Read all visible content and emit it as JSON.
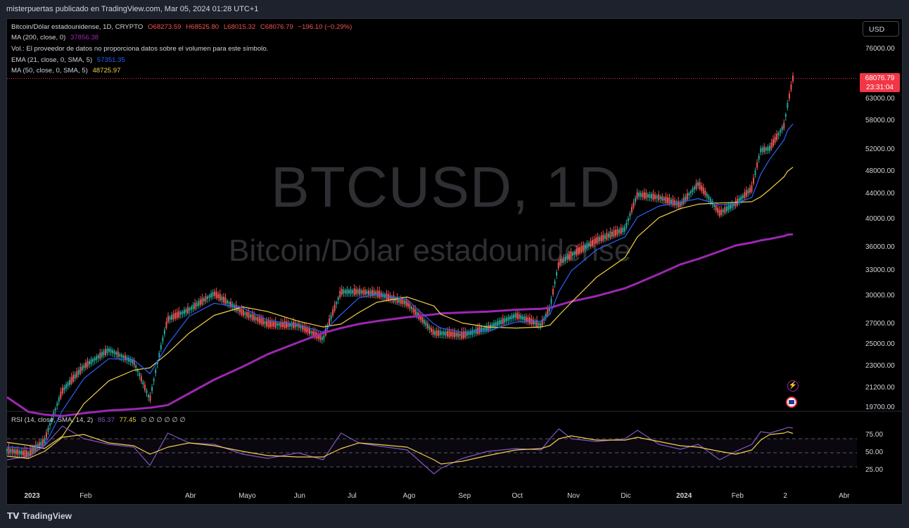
{
  "header": {
    "published": "misterpuertas publicado en TradingView.com, Mar 05, 2024 01:28 UTC+1"
  },
  "legend": {
    "symbol_line": "Bitcoin/Dólar estadounidense, 1D, CRYPTO",
    "open": "O68273.59",
    "high": "H68525.80",
    "low": "L68015.32",
    "close": "C68076.79",
    "change": "−196.10 (−0.29%)",
    "ma200_label": "MA (200, close, 0)",
    "ma200_value": "37856.38",
    "vol_note": "Vol.: El proveedor de datos no proporciona datos sobre el volumen para este símbolo.",
    "ema21_label": "EMA (21, close, 0, SMA, 5)",
    "ema21_value": "57351.35",
    "ma50_label": "MA (50, close, 0, SMA, 5)",
    "ma50_value": "48725.97",
    "rsi_label": "RSI (14, close, SMA, 14, 2)",
    "rsi_value": "85.37",
    "rsi_ma_value": "77.45",
    "rsi_extra": "∅ ∅ ∅ ∅ ∅ ∅"
  },
  "watermark": {
    "ticker": "BTCUSD, 1D",
    "name": "Bitcoin/Dólar estadounidense"
  },
  "currency_button": "USD",
  "last_price": {
    "price": "68076.79",
    "countdown": "23:31:04"
  },
  "footer": {
    "logo": "TradingView"
  },
  "colors": {
    "up": "#26a69a",
    "down": "#ef5350",
    "ma200": "#9c27b0",
    "ema21": "#2962ff",
    "ma50": "#f2d04a",
    "rsi": "#7e57c2",
    "rsi_ma": "#f2d04a",
    "tag": "#f23645"
  },
  "chart_data": {
    "type": "line",
    "title": "BTCUSD, 1D",
    "log_scale": true,
    "y_ticks": [
      "76000.00",
      "63000.00",
      "58000.00",
      "52000.00",
      "48000.00",
      "44000.00",
      "40000.00",
      "36000.00",
      "33000.00",
      "30000.00",
      "27000.00",
      "25000.00",
      "23000.00",
      "21200.00",
      "19700.00"
    ],
    "x_ticks": [
      "2023",
      "Feb",
      "Abr",
      "Mayo",
      "Jun",
      "Jul",
      "Ago",
      "Sep",
      "Oct",
      "Nov",
      "Dic",
      "2024",
      "Feb",
      "2",
      "Abr"
    ],
    "rsi_ticks": [
      "75.00",
      "50.00",
      "25.00"
    ],
    "x": [
      "2022-12-20",
      "2023-01-01",
      "2023-01-10",
      "2023-01-20",
      "2023-02-01",
      "2023-02-15",
      "2023-03-01",
      "2023-03-10",
      "2023-03-20",
      "2023-04-01",
      "2023-04-15",
      "2023-05-01",
      "2023-05-15",
      "2023-06-01",
      "2023-06-15",
      "2023-06-25",
      "2023-07-05",
      "2023-07-15",
      "2023-08-01",
      "2023-08-16",
      "2023-08-20",
      "2023-09-01",
      "2023-09-15",
      "2023-10-01",
      "2023-10-15",
      "2023-10-20",
      "2023-10-25",
      "2023-11-01",
      "2023-11-15",
      "2023-12-01",
      "2023-12-08",
      "2023-12-20",
      "2024-01-01",
      "2024-01-11",
      "2024-01-23",
      "2024-02-01",
      "2024-02-10",
      "2024-02-15",
      "2024-02-20",
      "2024-02-28",
      "2024-03-01",
      "2024-03-04"
    ],
    "series": [
      {
        "name": "BTCUSD",
        "values": [
          16800,
          16550,
          17400,
          21000,
          23000,
          24500,
          23400,
          20300,
          27500,
          28500,
          30300,
          28200,
          27000,
          26900,
          25500,
          30500,
          30500,
          30300,
          29200,
          26100,
          26100,
          25900,
          26600,
          27900,
          26900,
          28700,
          34000,
          35000,
          37000,
          38600,
          44000,
          43500,
          42300,
          45800,
          41000,
          42500,
          45000,
          52000,
          52300,
          57000,
          61500,
          68076.79
        ]
      },
      {
        "name": "MA (200, close, 0)",
        "values": [
          20500,
          19400,
          19200,
          19100,
          19300,
          19500,
          19600,
          19700,
          19900,
          20800,
          21900,
          23000,
          24100,
          25200,
          26100,
          26600,
          27000,
          27300,
          27700,
          28000,
          28100,
          28200,
          28300,
          28500,
          28600,
          28700,
          29000,
          29400,
          30000,
          30900,
          31500,
          32600,
          33800,
          34500,
          35500,
          36300,
          36700,
          37000,
          37200,
          37600,
          37800,
          37856.38
        ]
      },
      {
        "name": "EMA (21, close, 0, SMA, 5)",
        "values": [
          17000,
          16900,
          17100,
          19500,
          22000,
          23700,
          23600,
          22400,
          25000,
          27800,
          29200,
          28700,
          27400,
          26900,
          26200,
          28000,
          29800,
          30200,
          29600,
          27000,
          26600,
          26200,
          26300,
          27200,
          27300,
          28000,
          30500,
          33000,
          35700,
          37500,
          40400,
          42100,
          42700,
          43300,
          42300,
          42500,
          43500,
          47500,
          50200,
          54000,
          56000,
          57351.35
        ]
      },
      {
        "name": "MA (50, close, 0, SMA, 5)",
        "values": [
          17300,
          17100,
          16900,
          17700,
          20000,
          21800,
          22700,
          22900,
          24200,
          26100,
          27900,
          28800,
          28300,
          27300,
          26700,
          27000,
          28200,
          29300,
          29900,
          28900,
          28000,
          27100,
          26700,
          26600,
          26700,
          26900,
          27900,
          29300,
          32200,
          34700,
          37500,
          40300,
          41700,
          42400,
          42600,
          42700,
          42800,
          43600,
          44800,
          47000,
          48000,
          48725.97
        ]
      },
      {
        "name": "RSI (14, close, SMA, 14, 2)",
        "values": [
          40,
          45,
          60,
          88,
          70,
          62,
          58,
          32,
          78,
          64,
          62,
          48,
          42,
          50,
          40,
          78,
          64,
          60,
          54,
          20,
          28,
          42,
          52,
          56,
          54,
          70,
          84,
          70,
          66,
          70,
          82,
          62,
          55,
          62,
          40,
          52,
          62,
          80,
          78,
          84,
          86,
          85.37
        ]
      },
      {
        "name": "RSI SMA",
        "values": [
          45,
          42,
          52,
          72,
          76,
          64,
          60,
          48,
          58,
          64,
          60,
          52,
          46,
          44,
          44,
          56,
          64,
          62,
          58,
          40,
          34,
          38,
          46,
          54,
          56,
          60,
          70,
          74,
          68,
          68,
          72,
          66,
          60,
          58,
          52,
          48,
          54,
          68,
          76,
          78,
          80,
          77.45
        ]
      }
    ]
  }
}
